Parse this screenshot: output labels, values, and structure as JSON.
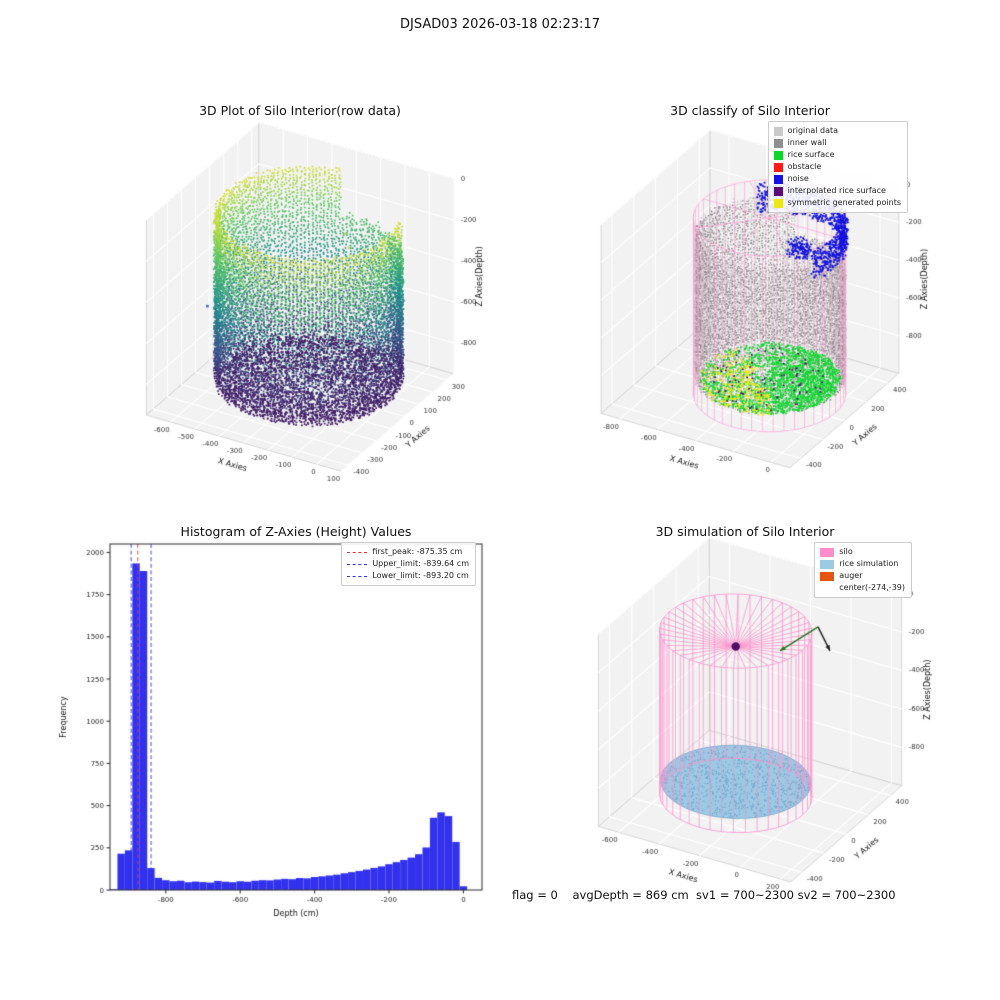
{
  "figure": {
    "title": "DJSAD03 2026-03-18 02:23:17",
    "status_text": "flag = 0    avgDepth = 869 cm  sv1 = 700~2300 sv2 = 700~2300",
    "background": "#ffffff"
  },
  "chart_data": [
    {
      "id": "raw_scatter_3d",
      "type": "scatter",
      "projection": "3d",
      "title": "3D Plot of Silo Interior(row data)",
      "xlabel": "X Axies",
      "ylabel": "Y Axies",
      "zlabel": "Z Axies(Depth)",
      "xlim": [
        -700,
        100
      ],
      "ylim": [
        -450,
        350
      ],
      "zlim": [
        -950,
        0
      ],
      "xticks": [
        -600,
        -500,
        -400,
        -300,
        -200,
        -100,
        0,
        100
      ],
      "yticks": [
        -400,
        -300,
        -200,
        -100,
        0,
        100,
        200,
        300
      ],
      "zticks": [
        0,
        -200,
        -400,
        -600,
        -800
      ],
      "colormap": "viridis",
      "description": "cylindrical silo interior point cloud colored by depth (yellow at rim ~-60cm to purple at floor ~-900cm)",
      "cylinder": {
        "center_x": -274,
        "center_y": -39,
        "radius": 330,
        "wall_top_z": -55,
        "wall_bottom_z": -868,
        "floor_z": -872,
        "gap_deg": [
          20,
          100
        ],
        "gap_top_z": -255
      }
    },
    {
      "id": "classify_scatter_3d",
      "type": "scatter",
      "projection": "3d",
      "title": "3D classify of Silo Interior",
      "xlabel": "X Axies",
      "ylabel": "Y Axies",
      "zlabel": "Z Axies(Depth)",
      "xlim": [
        -900,
        100
      ],
      "ylim": [
        -500,
        500
      ],
      "zlim": [
        -1000,
        0
      ],
      "xticks": [
        -800,
        -600,
        -400,
        -200,
        0
      ],
      "yticks": [
        -400,
        -200,
        0,
        200,
        400
      ],
      "zticks": [
        0,
        -200,
        -400,
        -600,
        -800
      ],
      "silo_color": "#ff9fd4",
      "legend": [
        {
          "label": "original data",
          "color": "#c9c9c9"
        },
        {
          "label": "inner wall",
          "color": "#8f8f8f"
        },
        {
          "label": "rice surface",
          "color": "#0fd42c"
        },
        {
          "label": "obstacle",
          "color": "#ff1a1a"
        },
        {
          "label": "noise",
          "color": "#1414e0"
        },
        {
          "label": "interpolated rice surface",
          "color": "#5a0b77"
        },
        {
          "label": "symmetric generated points",
          "color": "#efe51c"
        }
      ],
      "cylinder": {
        "center_x": -274,
        "center_y": -39,
        "radius": 340,
        "wall_top_z": -85,
        "wall_bottom_z": -855,
        "rice_z": -860,
        "gap_deg": [
          20,
          100
        ],
        "gap_top_z": -265
      }
    },
    {
      "id": "histogram_depth",
      "type": "bar",
      "title": "Histogram of Z-Axies (Height) Values",
      "xlabel": "Depth (cm)",
      "ylabel": "Frequency",
      "xlim": [
        -950,
        50
      ],
      "ylim": [
        0,
        2050
      ],
      "xticks": [
        -800,
        -600,
        -400,
        -200,
        0
      ],
      "yticks": [
        0,
        250,
        500,
        750,
        1000,
        1250,
        1500,
        1750,
        2000
      ],
      "bar_color": "#3232ee",
      "bin_start": -950,
      "bin_width": 20,
      "counts": [
        4,
        215,
        235,
        1935,
        1890,
        130,
        72,
        58,
        52,
        55,
        46,
        50,
        47,
        44,
        54,
        49,
        46,
        52,
        49,
        55,
        58,
        57,
        62,
        66,
        64,
        71,
        69,
        77,
        81,
        86,
        91,
        99,
        106,
        113,
        121,
        131,
        140,
        153,
        165,
        178,
        192,
        212,
        252,
        428,
        460,
        438,
        285,
        22
      ],
      "lines": [
        {
          "label": "first_peak: -875.35 cm",
          "x": -875.35,
          "color": "#e83030",
          "style": "dashed"
        },
        {
          "label": "Upper_limit: -839.64 cm",
          "x": -839.64,
          "color": "#3030e8",
          "style": "dashed"
        },
        {
          "label": "Lower_limit: -893.20 cm",
          "x": -893.2,
          "color": "#3030e8",
          "style": "dashed"
        }
      ]
    },
    {
      "id": "simulation_3d",
      "type": "scatter",
      "projection": "3d",
      "title": "3D simulation of Silo Interior",
      "xlabel": "X Axies",
      "ylabel": "Y Axies",
      "zlabel": "Z Axies(Depth)",
      "xlim": [
        -700,
        250
      ],
      "ylim": [
        -500,
        500
      ],
      "zlim": [
        -1000,
        0
      ],
      "xticks": [
        -600,
        -400,
        -200,
        0,
        200
      ],
      "yticks": [
        -400,
        -200,
        0,
        200,
        400
      ],
      "zticks": [
        0,
        -200,
        -400,
        -600,
        -800
      ],
      "legend": [
        {
          "label": "silo",
          "color": "#ff8ecb"
        },
        {
          "label": "rice simulation",
          "color": "#9cc9e4"
        },
        {
          "label": "auger",
          "color": "#e65510"
        },
        {
          "label": "center(-274,-39)",
          "color": null
        }
      ],
      "center": {
        "x": -274,
        "y": -39
      },
      "rice_z": -869,
      "apex_z": -165,
      "cylinder": {
        "center_x": -274,
        "center_y": -39,
        "radius": 330,
        "wall_top_z": -85,
        "wall_bottom_z": -940
      }
    }
  ]
}
